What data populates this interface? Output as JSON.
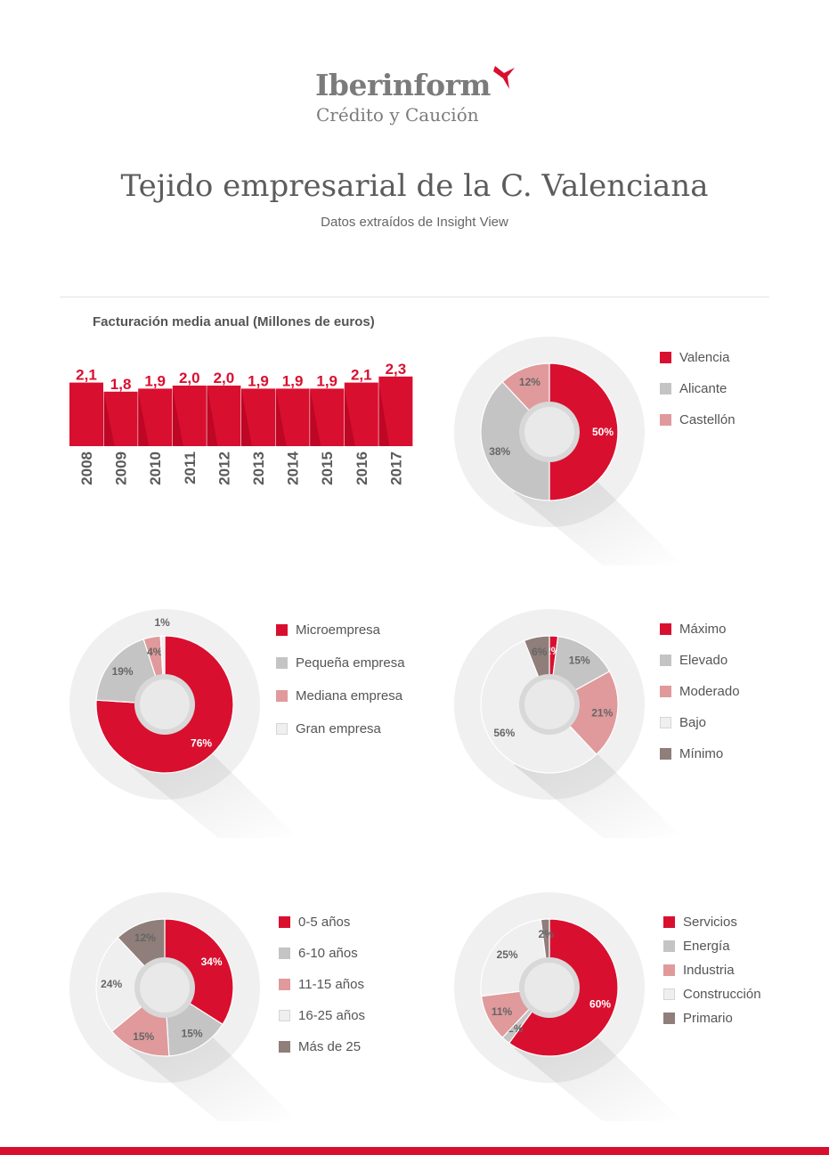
{
  "brand": {
    "name": "Iberinform",
    "tagline": "Crédito y Caución",
    "accent": "#d90f2f"
  },
  "header": {
    "title": "Tejido empresarial de la C. Valenciana",
    "subtitle": "Datos extraídos de Insight View"
  },
  "chart_data": [
    {
      "type": "bar",
      "title": "Facturación media anual (Millones de euros)",
      "categories": [
        "2008",
        "2009",
        "2010",
        "2011",
        "2012",
        "2013",
        "2014",
        "2015",
        "2016",
        "2017"
      ],
      "values": [
        2.1,
        1.8,
        1.9,
        2.0,
        2.0,
        1.9,
        1.9,
        1.9,
        2.1,
        2.3
      ],
      "value_labels": [
        "2,1",
        "1,8",
        "1,9",
        "2,0",
        "2,0",
        "1,9",
        "1,9",
        "1,9",
        "2,1",
        "2,3"
      ],
      "color": "#d90f2f"
    },
    {
      "type": "pie",
      "slices": [
        {
          "label": "Valencia",
          "value": 50,
          "text": "50%",
          "color": "#d90f2f"
        },
        {
          "label": "Alicante",
          "value": 38,
          "text": "38%",
          "color": "#c4c4c4"
        },
        {
          "label": "Castellón",
          "value": 12,
          "text": "12%",
          "color": "#e09a9c"
        }
      ]
    },
    {
      "type": "pie",
      "slices": [
        {
          "label": "Microempresa",
          "value": 76,
          "text": "76%",
          "color": "#d90f2f"
        },
        {
          "label": "Pequeña empresa",
          "value": 19,
          "text": "19%",
          "color": "#c4c4c4"
        },
        {
          "label": "Mediana empresa",
          "value": 4,
          "text": "4%",
          "color": "#e09a9c"
        },
        {
          "label": "Gran empresa",
          "value": 1,
          "text": "1%",
          "color": "#efefef"
        }
      ]
    },
    {
      "type": "pie",
      "slices": [
        {
          "label": "Máximo",
          "value": 2,
          "text": "2%",
          "color": "#d90f2f"
        },
        {
          "label": "Elevado",
          "value": 15,
          "text": "15%",
          "color": "#c4c4c4"
        },
        {
          "label": "Moderado",
          "value": 21,
          "text": "21%",
          "color": "#e09a9c"
        },
        {
          "label": "Bajo",
          "value": 56,
          "text": "56%",
          "color": "#efefef"
        },
        {
          "label": "Mínimo",
          "value": 6,
          "text": "6%",
          "color": "#8f7e7a"
        }
      ]
    },
    {
      "type": "pie",
      "slices": [
        {
          "label": "0-5 años",
          "value": 34,
          "text": "34%",
          "color": "#d90f2f"
        },
        {
          "label": "6-10 años",
          "value": 15,
          "text": "15%",
          "color": "#c4c4c4"
        },
        {
          "label": "11-15 años",
          "value": 15,
          "text": "15%",
          "color": "#e09a9c"
        },
        {
          "label": "16-25 años",
          "value": 24,
          "text": "24%",
          "color": "#efefef"
        },
        {
          "label": "Más de 25",
          "value": 12,
          "text": "12%",
          "color": "#8f7e7a"
        }
      ]
    },
    {
      "type": "pie",
      "slices": [
        {
          "label": "Servicios",
          "value": 60,
          "text": "60%",
          "color": "#d90f2f"
        },
        {
          "label": "Energía",
          "value": 2,
          "text": "2%",
          "color": "#c4c4c4"
        },
        {
          "label": "Industria",
          "value": 11,
          "text": "11%",
          "color": "#e09a9c"
        },
        {
          "label": "Construcción",
          "value": 25,
          "text": "25%",
          "color": "#efefef"
        },
        {
          "label": "Primario",
          "value": 2,
          "text": "2%",
          "color": "#8f7e7a"
        }
      ]
    }
  ]
}
